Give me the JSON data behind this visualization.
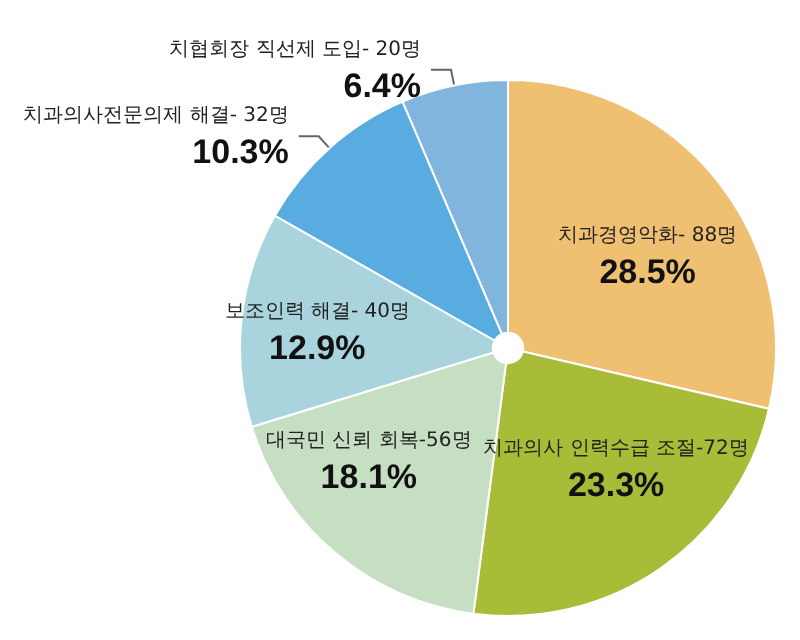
{
  "chart_data": {
    "type": "pie",
    "categories": [
      "치과경영악화- 88명",
      "치과의사 인력수급 조절-72명",
      "대국민 신뢰 회복-56명",
      "보조인력 해결- 40명",
      "치과의사전문의제 해결- 32명",
      "치협회장 직선제 도입- 20명"
    ],
    "values": [
      28.5,
      23.3,
      18.1,
      12.9,
      10.3,
      6.4
    ],
    "value_labels": [
      "28.5%",
      "23.3%",
      "18.1%",
      "12.9%",
      "10.3%",
      "6.4%"
    ],
    "colors": [
      "#efc071",
      "#a8bc38",
      "#c6dfc2",
      "#a9d4de",
      "#58acdf",
      "#80b6dd"
    ],
    "legend": false
  }
}
